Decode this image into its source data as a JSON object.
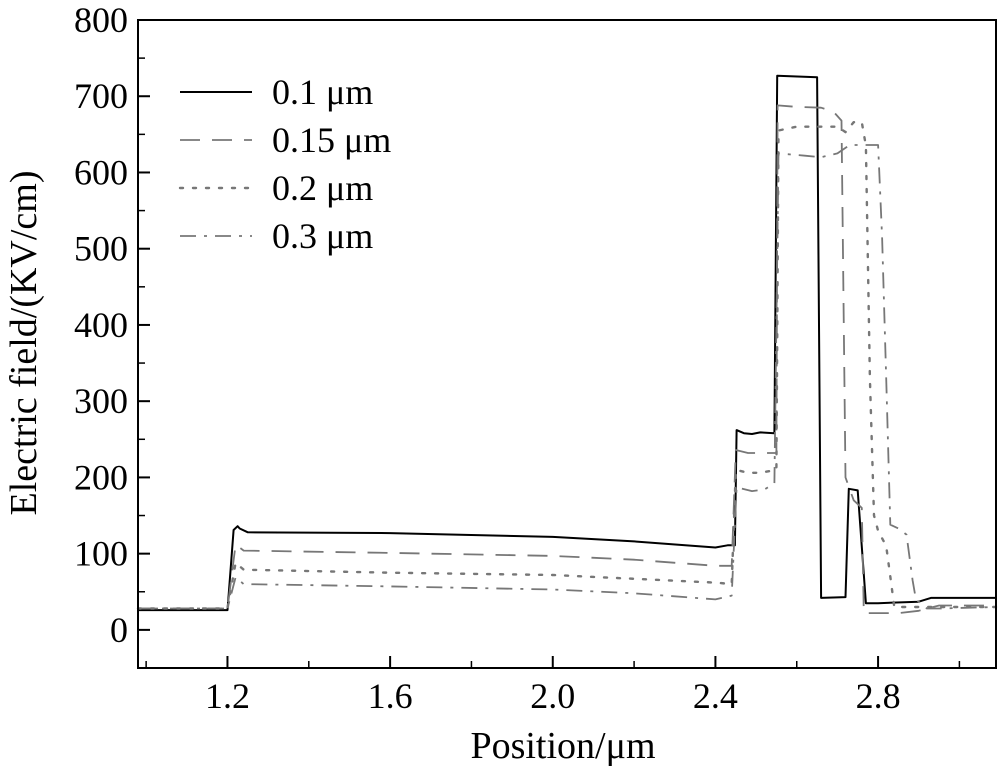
{
  "chart_data": {
    "type": "line",
    "title": "",
    "xlabel": "Position/μm",
    "ylabel": "Electric field/(KV/cm)",
    "xlim": [
      0.98,
      3.09
    ],
    "ylim": [
      -50,
      800
    ],
    "xticks": [
      1.2,
      1.6,
      2.0,
      2.4,
      2.8
    ],
    "xtick_labels": [
      "1.2",
      "1.6",
      "2.0",
      "2.4",
      "2.8"
    ],
    "yticks": [
      0,
      100,
      200,
      300,
      400,
      500,
      600,
      700,
      800
    ],
    "ytick_labels": [
      "0",
      "100",
      "200",
      "300",
      "400",
      "500",
      "600",
      "700",
      "800"
    ],
    "grid": false,
    "legend_position": "top-left",
    "series": [
      {
        "name": "0.1 μm",
        "style": "solid",
        "color": "#000000",
        "points": [
          [
            0.98,
            26
          ],
          [
            1.2,
            26
          ],
          [
            1.215,
            131
          ],
          [
            1.225,
            136
          ],
          [
            1.23,
            133
          ],
          [
            1.25,
            128
          ],
          [
            1.6,
            127
          ],
          [
            2.0,
            122
          ],
          [
            2.2,
            116
          ],
          [
            2.4,
            108
          ],
          [
            2.43,
            111
          ],
          [
            2.448,
            111
          ],
          [
            2.452,
            262
          ],
          [
            2.47,
            258
          ],
          [
            2.49,
            257
          ],
          [
            2.51,
            259
          ],
          [
            2.545,
            258
          ],
          [
            2.552,
            727
          ],
          [
            2.65,
            725
          ],
          [
            2.66,
            42
          ],
          [
            2.72,
            43
          ],
          [
            2.728,
            185
          ],
          [
            2.75,
            183
          ],
          [
            2.77,
            35
          ],
          [
            2.8,
            35
          ],
          [
            2.9,
            37
          ],
          [
            2.93,
            42
          ],
          [
            3.09,
            42
          ]
        ]
      },
      {
        "name": "0.15 μm",
        "style": "dashed",
        "color": "#777777",
        "points": [
          [
            0.98,
            28
          ],
          [
            1.2,
            28
          ],
          [
            1.22,
            112
          ],
          [
            1.24,
            104
          ],
          [
            1.6,
            101
          ],
          [
            2.0,
            97
          ],
          [
            2.2,
            92
          ],
          [
            2.4,
            84
          ],
          [
            2.44,
            84
          ],
          [
            2.45,
            236
          ],
          [
            2.48,
            232
          ],
          [
            2.53,
            232
          ],
          [
            2.55,
            232
          ],
          [
            2.553,
            688
          ],
          [
            2.6,
            686
          ],
          [
            2.66,
            685
          ],
          [
            2.69,
            680
          ],
          [
            2.71,
            668
          ],
          [
            2.72,
            200
          ],
          [
            2.74,
            170
          ],
          [
            2.76,
            160
          ],
          [
            2.765,
            22
          ],
          [
            2.8,
            22
          ],
          [
            2.85,
            22
          ],
          [
            2.9,
            25
          ],
          [
            2.95,
            32
          ],
          [
            3.09,
            32
          ]
        ]
      },
      {
        "name": "0.2 μm",
        "style": "dotted",
        "color": "#777777",
        "points": [
          [
            0.98,
            28
          ],
          [
            1.2,
            28
          ],
          [
            1.22,
            88
          ],
          [
            1.24,
            79
          ],
          [
            1.6,
            75
          ],
          [
            2.0,
            72
          ],
          [
            2.2,
            67
          ],
          [
            2.4,
            62
          ],
          [
            2.44,
            60
          ],
          [
            2.45,
            210
          ],
          [
            2.48,
            206
          ],
          [
            2.51,
            206
          ],
          [
            2.55,
            210
          ],
          [
            2.555,
            655
          ],
          [
            2.6,
            660
          ],
          [
            2.7,
            660
          ],
          [
            2.72,
            653
          ],
          [
            2.74,
            666
          ],
          [
            2.76,
            666
          ],
          [
            2.77,
            635
          ],
          [
            2.78,
            330
          ],
          [
            2.79,
            150
          ],
          [
            2.8,
            130
          ],
          [
            2.82,
            110
          ],
          [
            2.83,
            70
          ],
          [
            2.84,
            30
          ],
          [
            2.9,
            30
          ],
          [
            3.09,
            30
          ]
        ]
      },
      {
        "name": "0.3 μm",
        "style": "dashdot",
        "color": "#777777",
        "points": [
          [
            0.98,
            28
          ],
          [
            1.2,
            28
          ],
          [
            1.22,
            69
          ],
          [
            1.24,
            60
          ],
          [
            1.6,
            57
          ],
          [
            2.0,
            53
          ],
          [
            2.2,
            48
          ],
          [
            2.4,
            40
          ],
          [
            2.44,
            45
          ],
          [
            2.452,
            187
          ],
          [
            2.49,
            182
          ],
          [
            2.52,
            184
          ],
          [
            2.545,
            192
          ],
          [
            2.555,
            625
          ],
          [
            2.62,
            622
          ],
          [
            2.66,
            620
          ],
          [
            2.7,
            625
          ],
          [
            2.73,
            636
          ],
          [
            2.8,
            636
          ],
          [
            2.81,
            515
          ],
          [
            2.82,
            330
          ],
          [
            2.83,
            138
          ],
          [
            2.85,
            133
          ],
          [
            2.87,
            125
          ],
          [
            2.885,
            65
          ],
          [
            2.893,
            40
          ],
          [
            2.92,
            28
          ],
          [
            2.95,
            28
          ],
          [
            3.09,
            30
          ]
        ]
      }
    ]
  }
}
